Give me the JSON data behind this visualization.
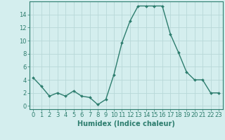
{
  "x": [
    0,
    1,
    2,
    3,
    4,
    5,
    6,
    7,
    8,
    9,
    10,
    11,
    12,
    13,
    14,
    15,
    16,
    17,
    18,
    19,
    20,
    21,
    22,
    23
  ],
  "y": [
    4.3,
    3.0,
    1.5,
    2.0,
    1.5,
    2.3,
    1.5,
    1.3,
    0.2,
    1.0,
    4.8,
    9.7,
    13.0,
    15.3,
    15.3,
    15.3,
    15.3,
    11.0,
    8.2,
    5.2,
    4.0,
    4.0,
    2.0,
    2.0
  ],
  "line_color": "#2d7d6e",
  "marker": "D",
  "marker_size": 2.0,
  "line_width": 1.0,
  "bg_color": "#d4eeee",
  "grid_color": "#b8d8d8",
  "xlabel": "Humidex (Indice chaleur)",
  "xlim": [
    -0.5,
    23.5
  ],
  "ylim": [
    -0.5,
    16.0
  ],
  "yticks": [
    0,
    2,
    4,
    6,
    8,
    10,
    12,
    14
  ],
  "xticks": [
    0,
    1,
    2,
    3,
    4,
    5,
    6,
    7,
    8,
    9,
    10,
    11,
    12,
    13,
    14,
    15,
    16,
    17,
    18,
    19,
    20,
    21,
    22,
    23
  ],
  "xlabel_fontsize": 7.0,
  "tick_fontsize": 6.0,
  "tick_color": "#2d7d6e",
  "spine_color": "#2d7d6e"
}
